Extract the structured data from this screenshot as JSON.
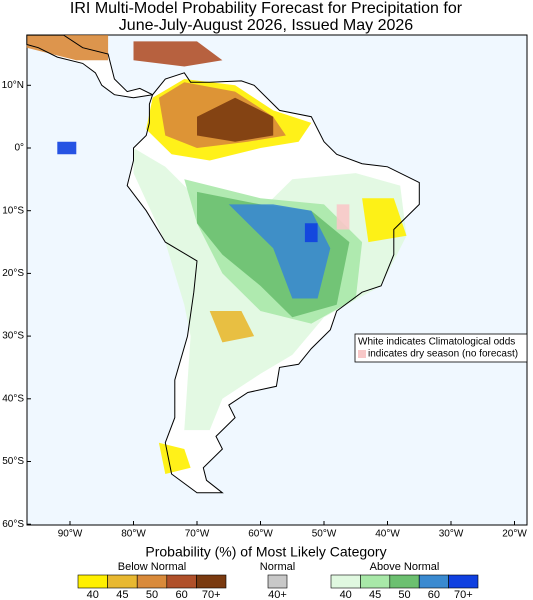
{
  "title_lines": [
    "IRI Multi-Model Probability Forecast for Precipitation for",
    "June-July-August 2026, Issued May 2026"
  ],
  "lat_labels": [
    "10°N",
    "0°",
    "10°S",
    "20°S",
    "30°S",
    "40°S",
    "50°S",
    "60°S"
  ],
  "lon_labels": [
    "90°W",
    "80°W",
    "70°W",
    "60°W",
    "50°W",
    "40°W",
    "30°W",
    "20°W"
  ],
  "note_lines": [
    "White indicates Climatological odds",
    "indicates dry season (no forecast)"
  ],
  "legend": {
    "title": "Probability (%) of Most Likely Category",
    "groups": [
      {
        "name": "Below Normal",
        "labels": [
          "40",
          "45",
          "50",
          "60",
          "70+"
        ],
        "colors": [
          "#fff000",
          "#e8b830",
          "#d98a3a",
          "#b0502a",
          "#7a3a10"
        ]
      },
      {
        "name": "Normal",
        "labels": [
          "40+"
        ],
        "colors": [
          "#c8c8c8"
        ]
      },
      {
        "name": "Above Normal",
        "labels": [
          "40",
          "45",
          "50",
          "60",
          "70+"
        ],
        "colors": [
          "#e0f8e0",
          "#a8e8a8",
          "#6cc070",
          "#3a8ad0",
          "#1040e0"
        ]
      }
    ]
  }
}
